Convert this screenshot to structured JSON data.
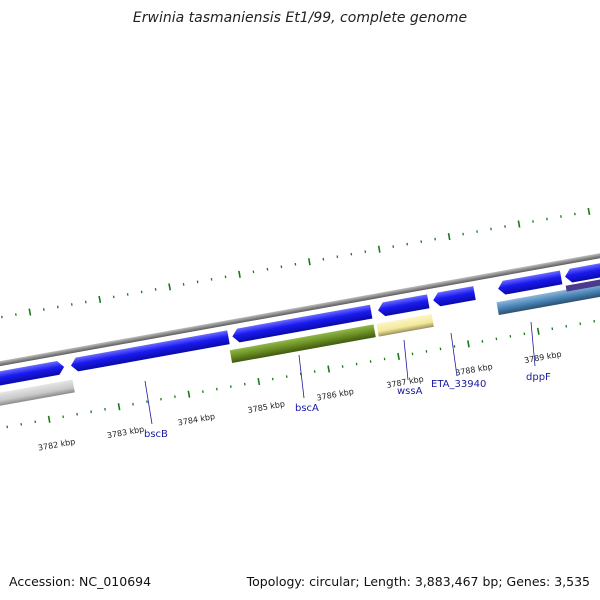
{
  "title": "Erwinia tasmaniensis Et1/99, complete genome",
  "footer": {
    "accession": "Accession: NC_010694",
    "summary": "Topology: circular; Length: 3,883,467 bp; Genes: 3,535"
  },
  "axis": {
    "labels": [
      "3782 kbp",
      "3783 kbp",
      "3784 kbp",
      "3785 kbp",
      "3786 kbp",
      "3787 kbp",
      "3788 kbp",
      "3789 kbp"
    ]
  },
  "gene_labels": [
    "bscB",
    "bscA",
    "wssA",
    "ETA_33940",
    "dppF"
  ],
  "colors": {
    "cds": "#1a1af0",
    "backbone": "#8c8c8c",
    "tick": "#1a7a1a",
    "olive": "#6b8e23",
    "pale_yellow": "#f2e99a",
    "steel_blue": "#4a86b8",
    "grey": "#c8c8c8",
    "purple": "#4b3a8c",
    "label": "#1a1aa0"
  }
}
